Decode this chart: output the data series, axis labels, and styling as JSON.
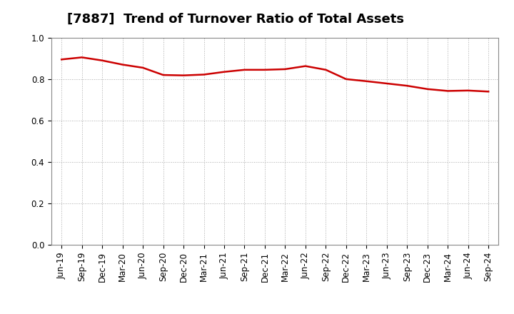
{
  "title": "[7887]  Trend of Turnover Ratio of Total Assets",
  "x_labels": [
    "Jun-19",
    "Sep-19",
    "Dec-19",
    "Mar-20",
    "Jun-20",
    "Sep-20",
    "Dec-20",
    "Mar-21",
    "Jun-21",
    "Sep-21",
    "Dec-21",
    "Mar-22",
    "Jun-22",
    "Sep-22",
    "Dec-22",
    "Mar-23",
    "Jun-23",
    "Sep-23",
    "Dec-23",
    "Mar-24",
    "Jun-24",
    "Sep-24"
  ],
  "y_values": [
    0.895,
    0.905,
    0.89,
    0.87,
    0.855,
    0.82,
    0.818,
    0.822,
    0.835,
    0.845,
    0.845,
    0.848,
    0.863,
    0.845,
    0.8,
    0.79,
    0.779,
    0.768,
    0.752,
    0.743,
    0.745,
    0.74
  ],
  "line_color": "#cc0000",
  "line_width": 1.8,
  "ylim": [
    0.0,
    1.0
  ],
  "yticks": [
    0.0,
    0.2,
    0.4,
    0.6,
    0.8,
    1.0
  ],
  "background_color": "#ffffff",
  "grid_color": "#aaaaaa",
  "title_fontsize": 13,
  "tick_fontsize": 8.5,
  "spine_color": "#888888"
}
